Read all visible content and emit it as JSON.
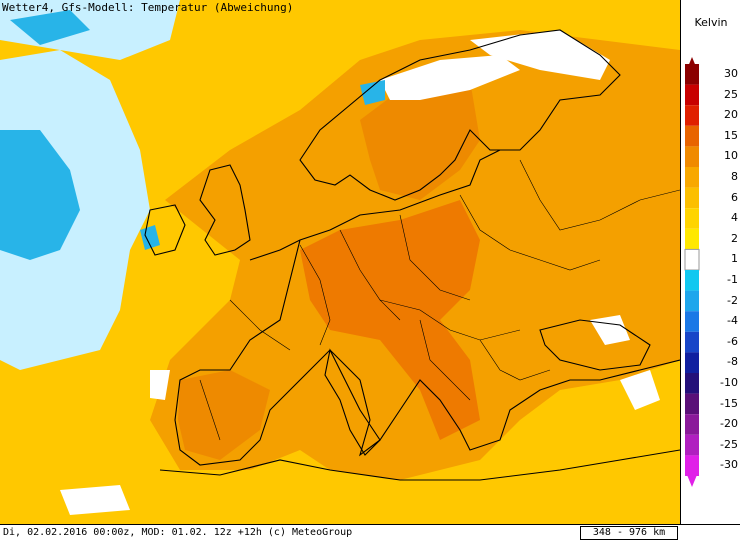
{
  "header": {
    "title": "Wetter4, Gfs-Modell: Temperatur (Abweichung)"
  },
  "footer": {
    "info": "Di, 02.02.2016 00:00z, MOD: 01.02. 12z +12h (c) MeteoGroup",
    "scale": "348 - 976 km"
  },
  "legend": {
    "unit": "Kelvin",
    "labels": [
      "30",
      "25",
      "20",
      "15",
      "10",
      "8",
      "6",
      "4",
      "2",
      "1",
      "-1",
      "-2",
      "-4",
      "-6",
      "-8",
      "-10",
      "-15",
      "-20",
      "-25",
      "-30"
    ],
    "colors": {
      "c30": "#8b0000",
      "c25": "#c80000",
      "c20": "#e02000",
      "c15": "#e86400",
      "c10": "#f08a00",
      "c8": "#f8a800",
      "c6": "#fcbf00",
      "c4": "#ffd400",
      "c2": "#ffe800",
      "c1": "#ffffff",
      "m1": "#10c8f0",
      "m2": "#1ea6ec",
      "m4": "#1a78e6",
      "m6": "#1846c8",
      "m8": "#1020a0",
      "m10": "#24107a",
      "m15": "#5a1078",
      "m20": "#8a1a9a",
      "m25": "#b020c0",
      "m30": "#e020e8"
    }
  },
  "map": {
    "land_fill": "#f4a000",
    "sea_fill": "#ffc800",
    "cold_fill": "#c8f0ff",
    "blue_fill": "#28b4e8",
    "white_fill": "#ffffff",
    "warm_fill": "#ee8400",
    "border_color": "#000000"
  }
}
